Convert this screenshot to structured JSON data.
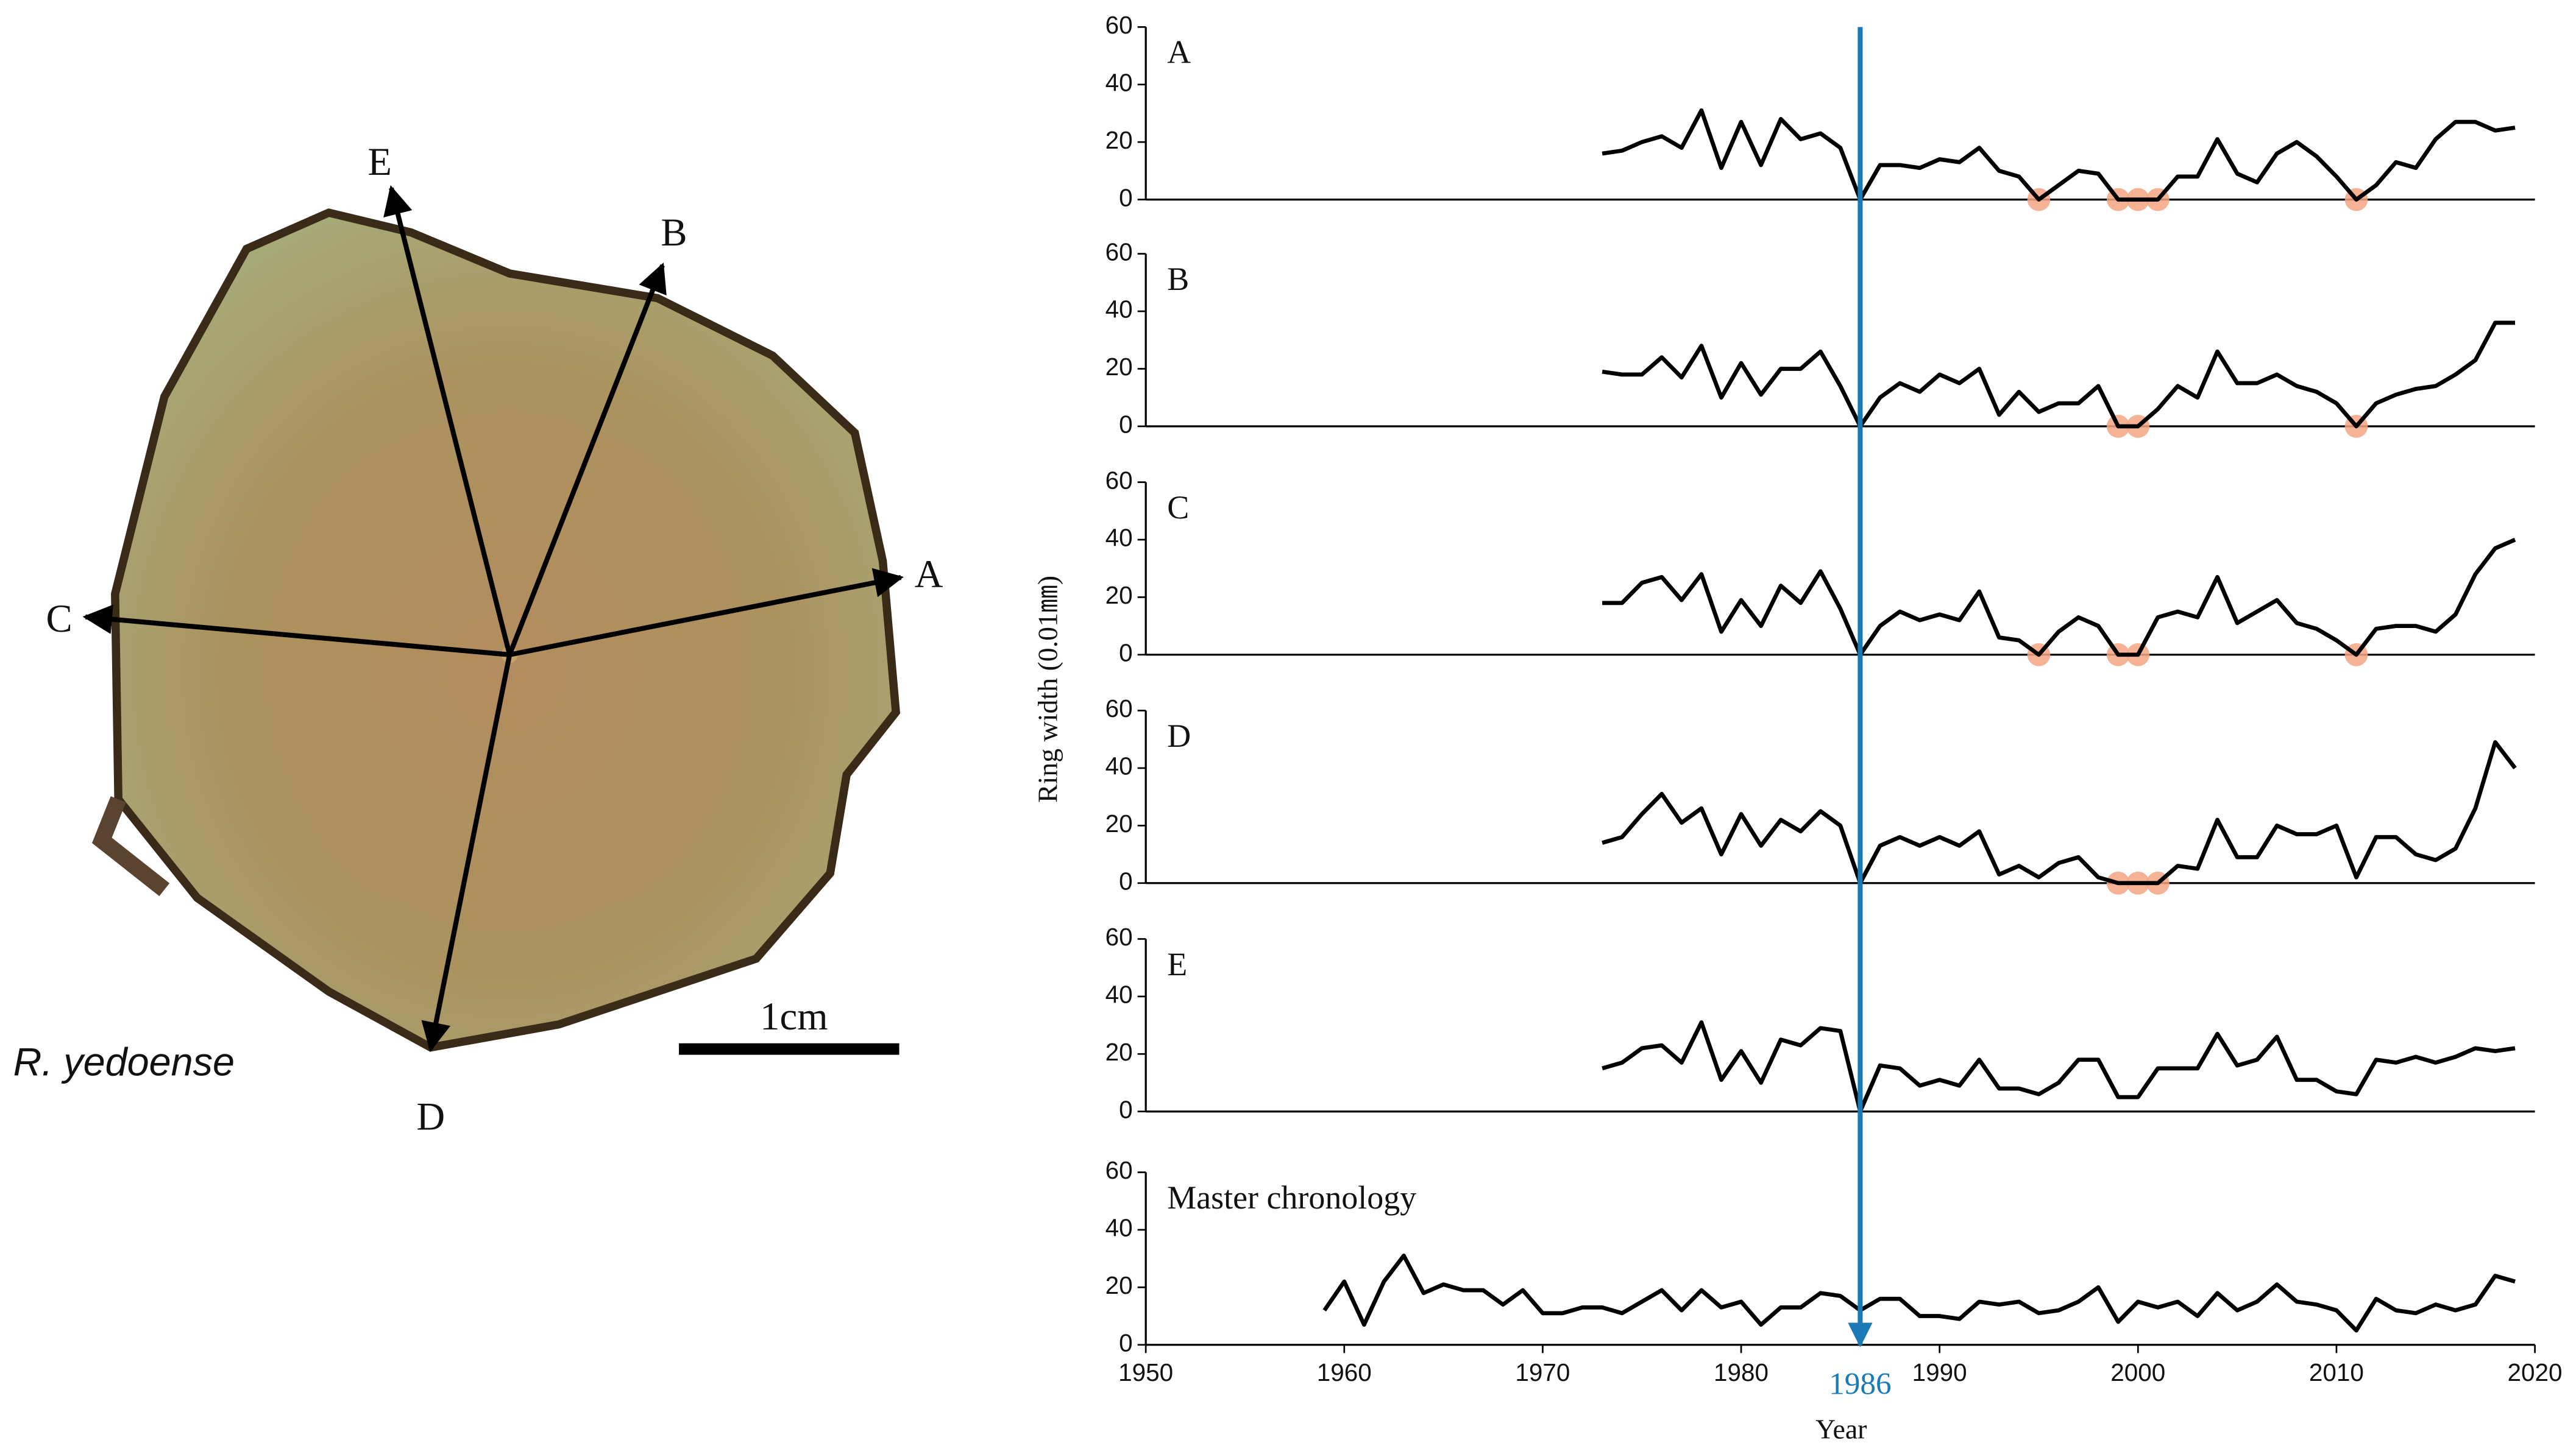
{
  "photo": {
    "species": "R. yedoense",
    "scale_bar": "1cm",
    "radii": [
      "A",
      "B",
      "C",
      "D",
      "E"
    ]
  },
  "shared_axes": {
    "ylabel": "Ring width (0.01㎜)",
    "highlight_year": 1986,
    "highlight_color": "#1a7ab5",
    "marker_color": "#f4a582"
  },
  "chart_data": [
    {
      "type": "line",
      "label": "A",
      "color": "#000000",
      "xlim": [
        1950,
        2020
      ],
      "ylim": [
        0,
        60
      ],
      "yticks": [
        0,
        20,
        40,
        60
      ],
      "x": [
        1973,
        1974,
        1975,
        1976,
        1977,
        1978,
        1979,
        1980,
        1981,
        1982,
        1983,
        1984,
        1985,
        1986,
        1987,
        1988,
        1989,
        1990,
        1991,
        1992,
        1993,
        1994,
        1995,
        1996,
        1997,
        1998,
        1999,
        2000,
        2001,
        2002,
        2003,
        2004,
        2005,
        2006,
        2007,
        2008,
        2009,
        2010,
        2011,
        2012,
        2013,
        2014,
        2015,
        2016,
        2017,
        2018,
        2019
      ],
      "values": [
        16,
        17,
        20,
        22,
        18,
        31,
        11,
        27,
        12,
        28,
        21,
        23,
        18,
        0,
        12,
        12,
        11,
        14,
        13,
        18,
        10,
        8,
        0,
        5,
        10,
        9,
        0,
        0,
        0,
        8,
        8,
        21,
        9,
        6,
        16,
        20,
        15,
        8,
        0,
        5,
        13,
        11,
        21,
        27,
        27,
        24,
        25
      ],
      "missing_rings": {
        "x": [
          1995,
          1999,
          2000,
          2001,
          2011
        ],
        "values": [
          0,
          0,
          0,
          0,
          0
        ]
      }
    },
    {
      "type": "line",
      "label": "B",
      "color": "#000000",
      "xlim": [
        1950,
        2020
      ],
      "ylim": [
        0,
        60
      ],
      "yticks": [
        0,
        20,
        40,
        60
      ],
      "x": [
        1973,
        1974,
        1975,
        1976,
        1977,
        1978,
        1979,
        1980,
        1981,
        1982,
        1983,
        1984,
        1985,
        1986,
        1987,
        1988,
        1989,
        1990,
        1991,
        1992,
        1993,
        1994,
        1995,
        1996,
        1997,
        1998,
        1999,
        2000,
        2001,
        2002,
        2003,
        2004,
        2005,
        2006,
        2007,
        2008,
        2009,
        2010,
        2011,
        2012,
        2013,
        2014,
        2015,
        2016,
        2017,
        2018,
        2019
      ],
      "values": [
        19,
        18,
        18,
        24,
        17,
        28,
        10,
        22,
        11,
        20,
        20,
        26,
        14,
        0,
        10,
        15,
        12,
        18,
        15,
        20,
        4,
        12,
        5,
        8,
        8,
        14,
        0,
        0,
        6,
        14,
        10,
        26,
        15,
        15,
        18,
        14,
        12,
        8,
        0,
        8,
        11,
        13,
        14,
        18,
        23,
        36,
        36
      ],
      "missing_rings": {
        "x": [
          1999,
          2000,
          2011
        ],
        "values": [
          0,
          0,
          0
        ]
      }
    },
    {
      "type": "line",
      "label": "C",
      "color": "#000000",
      "xlim": [
        1950,
        2020
      ],
      "ylim": [
        0,
        60
      ],
      "yticks": [
        0,
        20,
        40,
        60
      ],
      "x": [
        1973,
        1974,
        1975,
        1976,
        1977,
        1978,
        1979,
        1980,
        1981,
        1982,
        1983,
        1984,
        1985,
        1986,
        1987,
        1988,
        1989,
        1990,
        1991,
        1992,
        1993,
        1994,
        1995,
        1996,
        1997,
        1998,
        1999,
        2000,
        2001,
        2002,
        2003,
        2004,
        2005,
        2006,
        2007,
        2008,
        2009,
        2010,
        2011,
        2012,
        2013,
        2014,
        2015,
        2016,
        2017,
        2018,
        2019
      ],
      "values": [
        18,
        18,
        25,
        27,
        19,
        28,
        8,
        19,
        10,
        24,
        18,
        29,
        16,
        0,
        10,
        15,
        12,
        14,
        12,
        22,
        6,
        5,
        0,
        8,
        13,
        10,
        0,
        0,
        13,
        15,
        13,
        27,
        11,
        15,
        19,
        11,
        9,
        5,
        0,
        9,
        10,
        10,
        8,
        14,
        28,
        37,
        40
      ],
      "missing_rings": {
        "x": [
          1995,
          1999,
          2000,
          2011
        ],
        "values": [
          0,
          0,
          0,
          0
        ]
      }
    },
    {
      "type": "line",
      "label": "D",
      "color": "#000000",
      "xlim": [
        1950,
        2020
      ],
      "ylim": [
        0,
        60
      ],
      "yticks": [
        0,
        20,
        40,
        60
      ],
      "x": [
        1973,
        1974,
        1975,
        1976,
        1977,
        1978,
        1979,
        1980,
        1981,
        1982,
        1983,
        1984,
        1985,
        1986,
        1987,
        1988,
        1989,
        1990,
        1991,
        1992,
        1993,
        1994,
        1995,
        1996,
        1997,
        1998,
        1999,
        2000,
        2001,
        2002,
        2003,
        2004,
        2005,
        2006,
        2007,
        2008,
        2009,
        2010,
        2011,
        2012,
        2013,
        2014,
        2015,
        2016,
        2017,
        2018,
        2019
      ],
      "values": [
        14,
        16,
        24,
        31,
        21,
        26,
        10,
        24,
        13,
        22,
        18,
        25,
        20,
        0,
        13,
        16,
        13,
        16,
        13,
        18,
        3,
        6,
        2,
        7,
        9,
        2,
        0,
        0,
        0,
        6,
        5,
        22,
        9,
        9,
        20,
        17,
        17,
        20,
        2,
        16,
        16,
        10,
        8,
        12,
        26,
        49,
        40
      ],
      "missing_rings": {
        "x": [
          1999,
          2000,
          2001
        ],
        "values": [
          0,
          0,
          0
        ]
      }
    },
    {
      "type": "line",
      "label": "E",
      "color": "#000000",
      "xlim": [
        1950,
        2020
      ],
      "ylim": [
        0,
        60
      ],
      "yticks": [
        0,
        20,
        40,
        60
      ],
      "x": [
        1973,
        1974,
        1975,
        1976,
        1977,
        1978,
        1979,
        1980,
        1981,
        1982,
        1983,
        1984,
        1985,
        1986,
        1987,
        1988,
        1989,
        1990,
        1991,
        1992,
        1993,
        1994,
        1995,
        1996,
        1997,
        1998,
        1999,
        2000,
        2001,
        2002,
        2003,
        2004,
        2005,
        2006,
        2007,
        2008,
        2009,
        2010,
        2011,
        2012,
        2013,
        2014,
        2015,
        2016,
        2017,
        2018,
        2019
      ],
      "values": [
        15,
        17,
        22,
        23,
        17,
        31,
        11,
        21,
        10,
        25,
        23,
        29,
        28,
        0,
        16,
        15,
        9,
        11,
        9,
        18,
        8,
        8,
        6,
        10,
        18,
        18,
        5,
        5,
        15,
        15,
        15,
        27,
        16,
        18,
        26,
        11,
        11,
        7,
        6,
        18,
        17,
        19,
        17,
        19,
        22,
        21,
        22
      ]
    },
    {
      "type": "line",
      "label": "Master chronology",
      "color": "#000000",
      "xlim": [
        1950,
        2020
      ],
      "ylim": [
        0,
        60
      ],
      "yticks": [
        0,
        20,
        40,
        60
      ],
      "xticks": [
        1950,
        1960,
        1970,
        1980,
        1990,
        2000,
        2010,
        2020
      ],
      "xlabel": "Year",
      "x": [
        1959,
        1960,
        1961,
        1962,
        1963,
        1964,
        1965,
        1966,
        1967,
        1968,
        1969,
        1970,
        1971,
        1972,
        1973,
        1974,
        1975,
        1976,
        1977,
        1978,
        1979,
        1980,
        1981,
        1982,
        1983,
        1984,
        1985,
        1986,
        1987,
        1988,
        1989,
        1990,
        1991,
        1992,
        1993,
        1994,
        1995,
        1996,
        1997,
        1998,
        1999,
        2000,
        2001,
        2002,
        2003,
        2004,
        2005,
        2006,
        2007,
        2008,
        2009,
        2010,
        2011,
        2012,
        2013,
        2014,
        2015,
        2016,
        2017,
        2018,
        2019
      ],
      "values": [
        12,
        22,
        7,
        22,
        31,
        18,
        21,
        19,
        19,
        14,
        19,
        11,
        11,
        13,
        13,
        11,
        15,
        19,
        12,
        19,
        13,
        15,
        7,
        13,
        13,
        18,
        17,
        12,
        16,
        16,
        10,
        10,
        9,
        15,
        14,
        15,
        11,
        12,
        15,
        20,
        8,
        15,
        13,
        15,
        10,
        18,
        12,
        15,
        21,
        15,
        14,
        12,
        5,
        16,
        12,
        11,
        14,
        12,
        14,
        24,
        22
      ]
    }
  ]
}
